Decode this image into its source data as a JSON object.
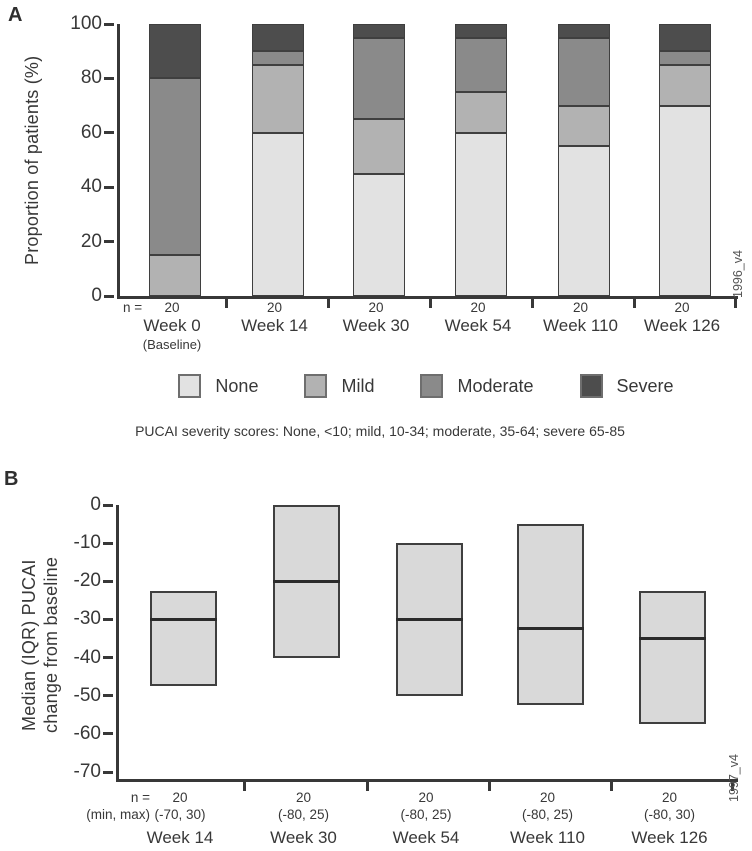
{
  "figure": {
    "panel_a_label": "A",
    "panel_b_label": "B"
  },
  "chart_data": [
    {
      "type": "bar",
      "subtype": "stacked_percent",
      "panel": "A",
      "title": "",
      "ylabel": "Proportion of patients (%)",
      "ylim": [
        0,
        100
      ],
      "yticks": [
        0,
        20,
        40,
        60,
        80,
        100
      ],
      "n_label": "n =",
      "side_label": "1996_v4",
      "legend_position": "bottom",
      "categories": [
        {
          "label": "Week 0",
          "sublabel": "(Baseline)",
          "n": "20"
        },
        {
          "label": "Week 14",
          "n": "20"
        },
        {
          "label": "Week 30",
          "n": "20"
        },
        {
          "label": "Week 54",
          "n": "20"
        },
        {
          "label": "Week 110",
          "n": "20"
        },
        {
          "label": "Week 126",
          "n": "20"
        }
      ],
      "series": [
        {
          "name": "None",
          "color": "#e2e2e2",
          "values": [
            0,
            60,
            45,
            60,
            55,
            70
          ]
        },
        {
          "name": "Mild",
          "color": "#b2b2b2",
          "values": [
            15,
            25,
            20,
            15,
            15,
            15
          ]
        },
        {
          "name": "Moderate",
          "color": "#8a8a8a",
          "values": [
            65,
            5,
            30,
            20,
            25,
            5
          ]
        },
        {
          "name": "Severe",
          "color": "#4d4d4d",
          "values": [
            20,
            10,
            5,
            5,
            5,
            10
          ]
        }
      ],
      "caption": "PUCAI severity scores: None, <10; mild, 10-34; moderate, 35-64; severe 65-85"
    },
    {
      "type": "box",
      "panel": "B",
      "title": "",
      "ylabel_lines": [
        "Median (IQR) PUCAI",
        "change from baseline"
      ],
      "ylim": [
        -70,
        0
      ],
      "yticks": [
        0,
        -10,
        -20,
        -30,
        -40,
        -50,
        -60,
        -70
      ],
      "n_label": "n =",
      "minmax_label": "(min, max)",
      "side_label": "1997_v4",
      "box_fill": "#d9d9d9",
      "box_border": "#3f3f3f",
      "categories": [
        {
          "label": "Week 14",
          "n": "20",
          "minmax": "(-70, 30)"
        },
        {
          "label": "Week 30",
          "n": "20",
          "minmax": "(-80, 25)"
        },
        {
          "label": "Week 54",
          "n": "20",
          "minmax": "(-80, 25)"
        },
        {
          "label": "Week 110",
          "n": "20",
          "minmax": "(-80, 25)"
        },
        {
          "label": "Week 126",
          "n": "20",
          "minmax": "(-80, 30)"
        }
      ],
      "boxes": [
        {
          "q3": -22.5,
          "median": -30,
          "q1": -47.5
        },
        {
          "q3": 0,
          "median": -20,
          "q1": -40
        },
        {
          "q3": -10,
          "median": -30,
          "q1": -50
        },
        {
          "q3": -5,
          "median": -32.5,
          "q1": -52.5
        },
        {
          "q3": -22.5,
          "median": -35,
          "q1": -57.5
        }
      ]
    }
  ]
}
